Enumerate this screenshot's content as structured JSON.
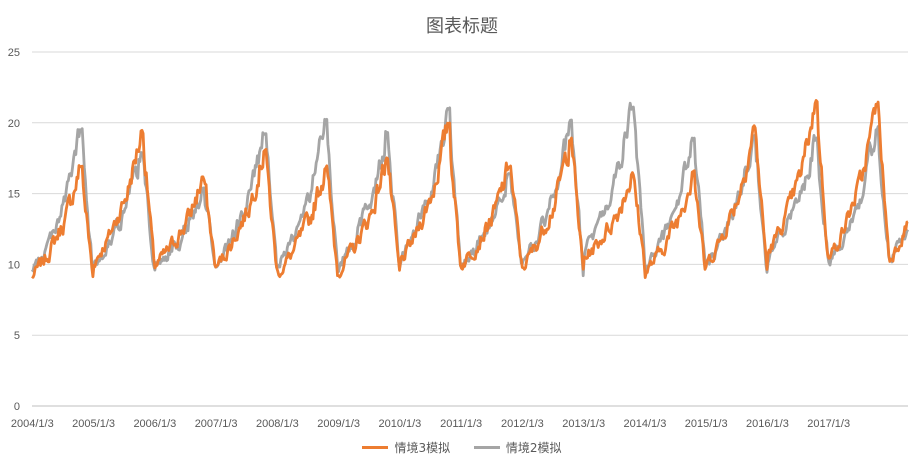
{
  "chart_data": {
    "type": "line",
    "title": "图表标题",
    "xlabel": "",
    "ylabel": "",
    "ylim": [
      0,
      25
    ],
    "yticks": [
      0,
      5,
      10,
      15,
      20,
      25
    ],
    "x_tick_labels": [
      "2004/1/3",
      "2005/1/3",
      "2006/1/3",
      "2007/1/3",
      "2008/1/3",
      "2009/1/3",
      "2010/1/3",
      "2011/1/3",
      "2012/1/3",
      "2013/1/3",
      "2014/1/3",
      "2015/1/3",
      "2016/1/3",
      "2017/1/3"
    ],
    "x_start_year": 2004,
    "x_end_year": 2018.3,
    "grid": "horizontal",
    "legend_position": "bottom",
    "annual_minima": [
      8.4,
      9.2,
      9.3,
      9.0,
      8.6,
      8.8,
      9.1,
      9.3,
      8.9,
      9.8,
      8.7,
      9.0,
      9.7,
      9.3
    ],
    "annual_peaks": [
      {
        "name": "情境3模拟",
        "values": [
          17.0,
          19.5,
          16.2,
          18.2,
          17.0,
          17.6,
          20.0,
          17.0,
          19.0,
          16.5,
          16.8,
          19.8,
          21.6,
          21.5
        ]
      },
      {
        "name": "情境2模拟",
        "values": [
          19.6,
          18.0,
          15.6,
          19.3,
          20.3,
          19.4,
          21.1,
          16.5,
          20.2,
          21.3,
          19.0,
          19.3,
          19.0,
          19.8
        ]
      }
    ],
    "series": [
      {
        "name": "情境3模拟",
        "color": "#ED7D31"
      },
      {
        "name": "情境2模拟",
        "color": "#A5A5A5"
      }
    ]
  }
}
